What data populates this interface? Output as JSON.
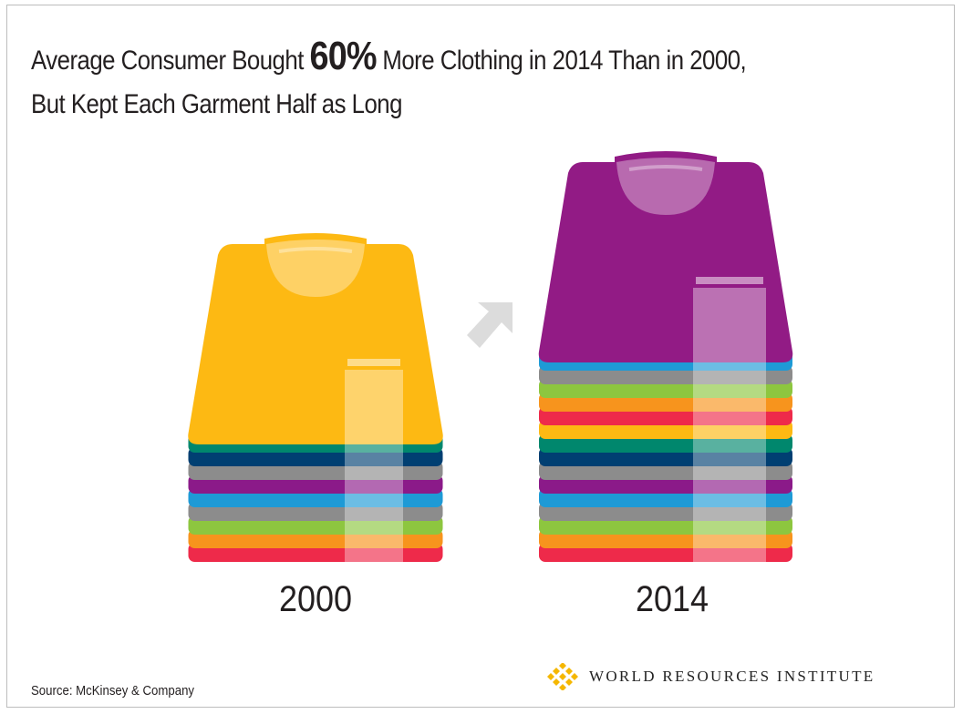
{
  "title": {
    "line1_before": "Average Consumer Bought ",
    "line1_emphasis": "60%",
    "line1_after": " More Clothing in 2014 Than in 2000,",
    "line2": "But Kept Each Garment Half as Long"
  },
  "stacks": [
    {
      "year": "2000",
      "top_color": "#FDB913",
      "folded_colors": [
        "#00876D",
        "#003F72",
        "#8C8C8C",
        "#8B1A89",
        "#1E9AD6",
        "#8C8C8C",
        "#8DC63F",
        "#F7941D",
        "#EE2A4A"
      ]
    },
    {
      "year": "2014",
      "top_color": "#921B85",
      "folded_colors": [
        "#1E9AD6",
        "#8C8C8C",
        "#8DC63F",
        "#F7941D",
        "#EE2A4A",
        "#FDB913",
        "#00876D",
        "#003F72",
        "#8C8C8C",
        "#8B1A89",
        "#1E9AD6",
        "#8C8C8C",
        "#8DC63F",
        "#F7941D",
        "#EE2A4A"
      ]
    }
  ],
  "arrow_icon": "diagonal-up-right-arrow",
  "arrow_color": "#DCDCDC",
  "source": "Source: McKinsey & Company",
  "brand": {
    "name": "WORLD RESOURCES INSTITUTE",
    "logo_color": "#F5B700"
  }
}
